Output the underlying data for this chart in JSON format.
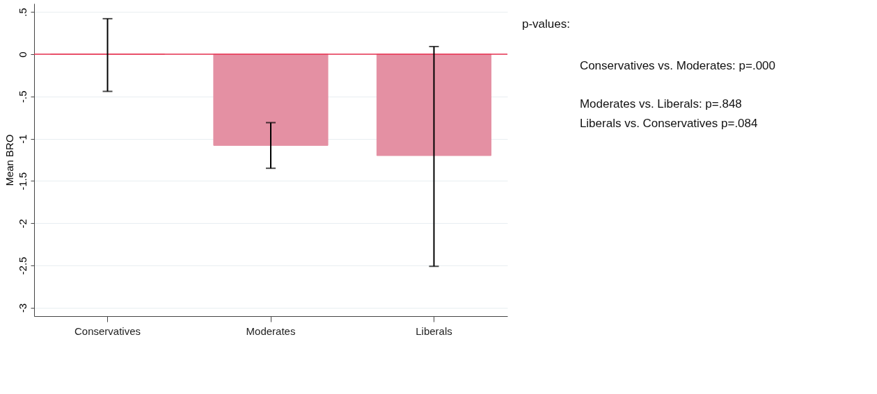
{
  "chart_data": {
    "type": "bar",
    "ylabel": "Mean BRO",
    "categories": [
      "Conservatives",
      "Moderates",
      "Liberals"
    ],
    "series": [
      {
        "color": "#e490a3",
        "values": [
          0,
          -1.08,
          -1.2
        ],
        "errors": [
          [
            -0.44,
            0.42
          ],
          [
            -1.35,
            -0.81
          ],
          [
            -2.51,
            0.09
          ]
        ]
      }
    ],
    "ylim": [
      -3.1,
      0.6
    ],
    "yticks": [
      {
        "value": 0.5,
        "label": ".5"
      },
      0,
      {
        "value": -0.5,
        "label": "-.5"
      },
      -1,
      {
        "value": -1.5,
        "label": "-1.5"
      },
      -2,
      {
        "value": -2.5,
        "label": "-2.5"
      },
      -3
    ],
    "grid": "y",
    "ref_lines": [
      {
        "axis": "y",
        "value": 0,
        "color": "#e8304f"
      }
    ],
    "annotations": [
      "p-values:",
      "Conservatives vs. Moderates: p=.000",
      "Moderates vs. Liberals: p=.848",
      "Liberals vs. Conservatives p=.084"
    ]
  }
}
